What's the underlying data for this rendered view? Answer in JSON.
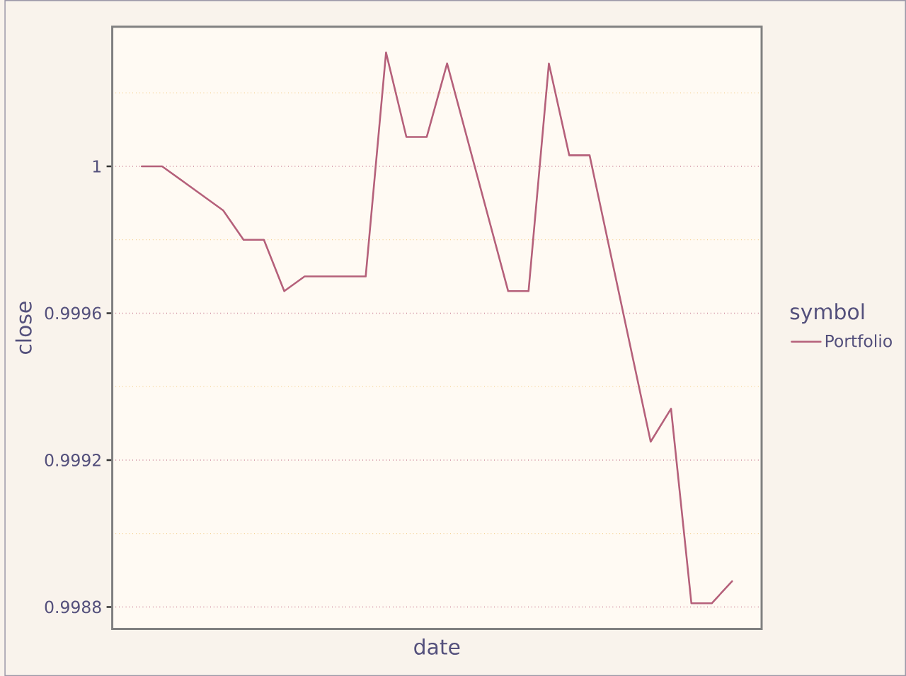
{
  "chart_data": {
    "type": "line",
    "xlabel": "date",
    "ylabel": "close",
    "legend_title": "symbol",
    "categories": [
      null,
      null,
      null,
      null,
      null,
      null,
      null,
      null,
      null,
      null,
      null,
      null,
      null,
      null,
      null,
      null,
      null,
      null,
      null,
      null,
      null,
      null,
      null,
      null,
      null,
      null,
      null,
      null,
      null,
      null
    ],
    "series": [
      {
        "name": "Portfolio",
        "color": "#b5607a",
        "values": [
          1.0,
          1.0,
          null,
          null,
          0.99988,
          0.9998,
          0.9998,
          0.99966,
          0.9997,
          null,
          null,
          0.9997,
          1.00031,
          1.00008,
          1.00008,
          1.00028,
          null,
          null,
          0.99966,
          0.99966,
          1.00028,
          1.00003,
          1.00003,
          null,
          null,
          0.99925,
          0.99934,
          0.99881,
          0.99881,
          0.99887
        ]
      }
    ],
    "ylim": [
      0.99874,
      1.00038
    ],
    "yticks": [
      0.9988,
      {
        "value": 0.999,
        "label": null
      },
      0.9992,
      {
        "value": 0.9994,
        "label": null
      },
      0.9996,
      {
        "value": 0.9998,
        "label": null
      },
      1,
      {
        "value": 1.0002,
        "label": null
      }
    ],
    "grid": "y",
    "legend": "right",
    "tick_labels": "y",
    "line_style": "solid"
  }
}
